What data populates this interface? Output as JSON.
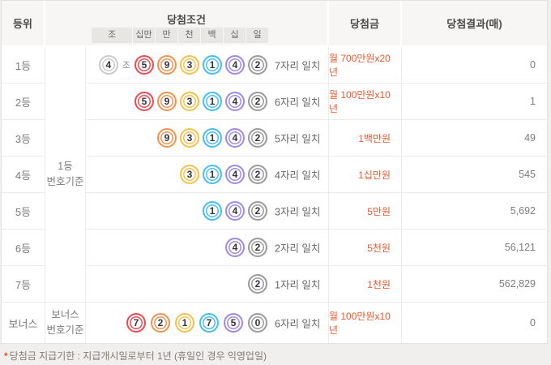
{
  "header": {
    "rank": "등위",
    "condition": "당첨조건",
    "prize": "당첨금",
    "result": "당첨결과(매)",
    "digits": [
      "조",
      "십만",
      "만",
      "천",
      "백",
      "십",
      "일"
    ]
  },
  "groups": {
    "main": [
      "1등",
      "번호기준"
    ],
    "bonus": [
      "보너스",
      "번호기준"
    ]
  },
  "rows": [
    {
      "rank": "1등",
      "jo_ball": {
        "n": "4",
        "color": "jo"
      },
      "jo_label": "조",
      "balls": [
        {
          "n": "5",
          "color": "red"
        },
        {
          "n": "9",
          "color": "orange"
        },
        {
          "n": "3",
          "color": "yellow"
        },
        {
          "n": "1",
          "color": "blue"
        },
        {
          "n": "4",
          "color": "purple"
        },
        {
          "n": "2",
          "color": "gray"
        }
      ],
      "match": "7자리 일치",
      "prize": "월 700만원x20년",
      "result": "0"
    },
    {
      "rank": "2등",
      "balls": [
        {
          "n": "5",
          "color": "red"
        },
        {
          "n": "9",
          "color": "orange"
        },
        {
          "n": "3",
          "color": "yellow"
        },
        {
          "n": "1",
          "color": "blue"
        },
        {
          "n": "4",
          "color": "purple"
        },
        {
          "n": "2",
          "color": "gray"
        }
      ],
      "match": "6자리 일치",
      "prize": "월 100만원x10년",
      "result": "1"
    },
    {
      "rank": "3등",
      "balls": [
        {
          "n": "9",
          "color": "orange"
        },
        {
          "n": "3",
          "color": "yellow"
        },
        {
          "n": "1",
          "color": "blue"
        },
        {
          "n": "4",
          "color": "purple"
        },
        {
          "n": "2",
          "color": "gray"
        }
      ],
      "match": "5자리 일치",
      "prize": "1백만원",
      "result": "49"
    },
    {
      "rank": "4등",
      "balls": [
        {
          "n": "3",
          "color": "yellow"
        },
        {
          "n": "1",
          "color": "blue"
        },
        {
          "n": "4",
          "color": "purple"
        },
        {
          "n": "2",
          "color": "gray"
        }
      ],
      "match": "4자리 일치",
      "prize": "1십만원",
      "result": "545"
    },
    {
      "rank": "5등",
      "balls": [
        {
          "n": "1",
          "color": "blue"
        },
        {
          "n": "4",
          "color": "purple"
        },
        {
          "n": "2",
          "color": "gray"
        }
      ],
      "match": "3자리 일치",
      "prize": "5만원",
      "result": "5,692"
    },
    {
      "rank": "6등",
      "balls": [
        {
          "n": "4",
          "color": "purple"
        },
        {
          "n": "2",
          "color": "gray"
        }
      ],
      "match": "2자리 일치",
      "prize": "5천원",
      "result": "56,121"
    },
    {
      "rank": "7등",
      "balls": [
        {
          "n": "2",
          "color": "gray"
        }
      ],
      "match": "1자리 일치",
      "prize": "1천원",
      "result": "562,829"
    },
    {
      "rank": "보너스",
      "balls": [
        {
          "n": "7",
          "color": "red"
        },
        {
          "n": "2",
          "color": "orange"
        },
        {
          "n": "1",
          "color": "yellow"
        },
        {
          "n": "7",
          "color": "blue"
        },
        {
          "n": "5",
          "color": "purple"
        },
        {
          "n": "0",
          "color": "gray"
        }
      ],
      "match": "6자리 일치",
      "prize": "월 100만원x10년",
      "result": "0"
    }
  ],
  "footnote": {
    "star": "*",
    "text": "당첨금 지급기한 : 지급개시일로부터 1년 (휴일인 경우 익영업일)"
  },
  "colors": {
    "prize_accent": "#e8582e",
    "ball": {
      "jo": "#cbcbcb",
      "red": "#ea4d55",
      "orange": "#f19350",
      "yellow": "#f3c24c",
      "blue": "#47bef1",
      "purple": "#a28ae4",
      "gray": "#9b9b9b"
    }
  }
}
